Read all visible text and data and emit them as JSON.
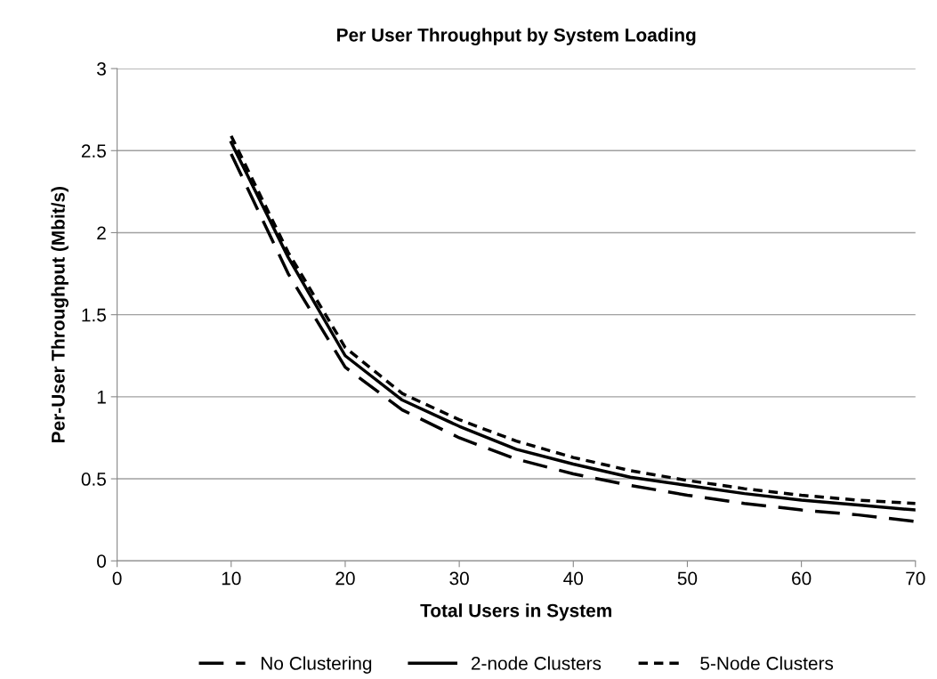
{
  "chart_data": {
    "type": "line",
    "title": "Per User Throughput by System Loading",
    "xlabel": "Total Users in System",
    "ylabel": "Per-User Throughput (Mbit/s)",
    "x": [
      10,
      15,
      20,
      25,
      30,
      35,
      40,
      45,
      50,
      55,
      60,
      65,
      70
    ],
    "series": [
      {
        "name": "No Clustering",
        "color": "#000000",
        "line_style": "dashed",
        "values": [
          2.48,
          1.75,
          1.18,
          0.92,
          0.75,
          0.62,
          0.53,
          0.46,
          0.4,
          0.35,
          0.31,
          0.28,
          0.24
        ]
      },
      {
        "name": "2-node Clusters",
        "color": "#000000",
        "line_style": "solid",
        "values": [
          2.55,
          1.85,
          1.25,
          0.98,
          0.82,
          0.68,
          0.59,
          0.51,
          0.46,
          0.41,
          0.37,
          0.34,
          0.31
        ]
      },
      {
        "name": "5-Node Clusters",
        "color": "#000000",
        "line_style": "dotted",
        "values": [
          2.59,
          1.88,
          1.3,
          1.02,
          0.86,
          0.73,
          0.63,
          0.55,
          0.49,
          0.44,
          0.4,
          0.37,
          0.35
        ]
      }
    ],
    "xlim": [
      0,
      70
    ],
    "xticks": [
      0,
      10,
      20,
      30,
      40,
      50,
      60,
      70
    ],
    "ylim": [
      0,
      3
    ],
    "yticks": [
      0,
      0.5,
      1,
      1.5,
      2,
      2.5,
      3
    ],
    "grid": "y",
    "legend": "bottom",
    "marker": "none"
  }
}
